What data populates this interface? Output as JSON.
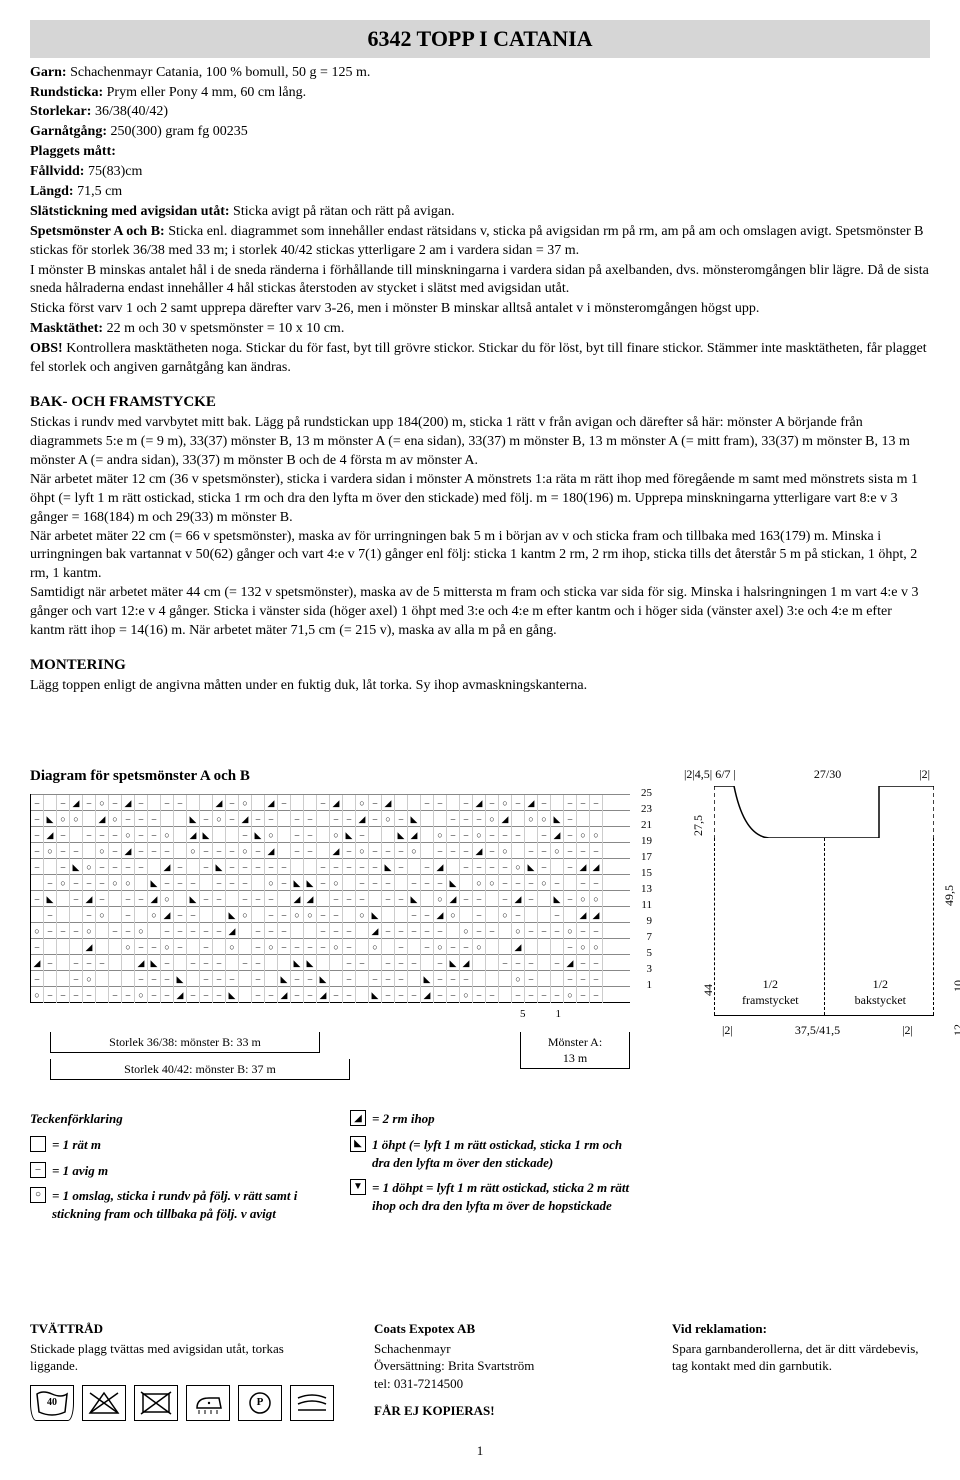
{
  "title": "6342  TOPP I CATANIA",
  "intro": {
    "garn_label": "Garn:",
    "garn_val": "Schachenmayr Catania, 100 % bomull, 50 g = 125 m.",
    "rund_label": "Rundsticka:",
    "rund_val": "Prym eller Pony 4 mm, 60 cm lång.",
    "stor_label": "Storlekar:",
    "stor_val": "36/38(40/42)",
    "garna_label": "Garnåtgång:",
    "garna_val": "250(300) gram fg 00235",
    "plagg_label": "Plaggets mått:",
    "fall_label": "Fållvidd:",
    "fall_val": "75(83)cm",
    "langd_label": "Längd:",
    "langd_val": "71,5 cm",
    "slat_label": "Slätstickning med avigsidan utåt:",
    "slat_val": "Sticka avigt på rätan och rätt på avigan.",
    "spets_label": "Spetsmönster A och B:",
    "spets_val1": "Sticka enl. diagrammet som innehåller endast rätsidans v, sticka på avigsidan rm på rm, am på am och omslagen avigt. Spetsmönster B stickas för storlek 36/38 med 33 m; i storlek 40/42 stickas ytterligare 2 am i vardera sidan = 37 m.",
    "spets_val2": "I mönster B minskas antalet hål i de sneda ränderna i förhållande till minskningarna i vardera sidan på axelbanden, dvs. mönsteromgången blir lägre. Då de sista sneda hålraderna endast innehåller 4 hål stickas återstoden av stycket i slätst med avigsidan utåt.",
    "spets_val3": "Sticka först varv 1 och 2 samt upprepa därefter varv 3-26, men i mönster B minskar alltså antalet v i mönsteromgången högst upp.",
    "mask_label": "Masktäthet:",
    "mask_val": "22 m och 30 v spetsmönster = 10 x 10 cm.",
    "obs_label": "OBS!",
    "obs_val": "Kontrollera masktätheten noga. Stickar du för fast, byt till grövre stickor. Stickar du för löst, byt till finare stickor. Stämmer inte masktätheten, får plagget fel storlek och angiven garnåtgång kan ändras."
  },
  "sections": {
    "bak_h": "BAK- OCH FRAMSTYCKE",
    "bak_body": "Stickas i rundv med varvbytet mitt bak. Lägg på rundstickan upp 184(200) m, sticka 1 rätt v från avigan och därefter så här: mönster A börjande från diagrammets 5:e m (= 9 m), 33(37) mönster B, 13 m mönster A (= ena sidan), 33(37) m mönster B, 13 m mönster A (= mitt fram), 33(37) m mönster B, 13 m mönster A (= andra sidan), 33(37) m mönster B och de 4 första m av mönster A.\nNär arbetet mäter 12 cm (36 v spetsmönster), sticka i vardera sidan i mönster A mönstrets 1:a räta m rätt ihop med föregående m samt med mönstrets sista m 1 öhpt (= lyft 1 m rätt ostickad, sticka 1 rm och dra den lyfta m över den stickade) med följ. m = 180(196) m. Upprepa minskningarna ytterligare vart 8:e v 3 gånger = 168(184) m och 29(33) m mönster B.\nNär arbetet mäter 22 cm (= 66 v spetsmönster), maska av för urringningen bak 5 m i början av v och sticka fram och tillbaka med 163(179) m. Minska i urringningen bak vartannat v 50(62) gånger och vart 4:e v 7(1) gånger enl följ: sticka 1 kantm 2 rm, 2 rm ihop, sticka tills det återstår 5 m på stickan, 1 öhpt, 2 rm, 1 kantm.\nSamtidigt när arbetet mäter 44 cm (= 132 v spetsmönster), maska av de 5 mittersta m fram och sticka var sida för sig. Minska i halsringningen 1 m vart 4:e v 3 gånger och vart 12:e v 4 gånger. Sticka i vänster sida (höger axel) 1 öhpt med 3:e och 4:e m efter kantm och i höger sida (vänster axel) 3:e och 4:e m efter kantm rätt ihop = 14(16) m. När arbetet mäter 71,5 cm (= 215 v), maska av alla m på en gång.",
    "mont_h": "MONTERING",
    "mont_body": "Lägg toppen enligt de angivna måtten under en fuktig duk, låt torka. Sy ihop avmaskningskanterna."
  },
  "diagram": {
    "title": "Diagram för spetsmönster A och B",
    "row_numbers": [
      25,
      23,
      21,
      19,
      17,
      15,
      13,
      11,
      9,
      7,
      5,
      3,
      1
    ],
    "under_5": "5",
    "under_1": "1",
    "size_a": "Storlek 36/38: mönster B: 33 m",
    "size_b": "Storlek 40/42: mönster B: 37 m",
    "mon_a": "Mönster A:\n13 m"
  },
  "legend": {
    "h": "Teckenförklaring",
    "l1": "= 1 rät m",
    "l2": "= 1 avig m",
    "l3": "= 1 omslag, sticka i rundv på följ. v rätt samt i stickning fram och tillbaka på följ. v avigt",
    "r1": "= 2 rm ihop",
    "r2": "1 öhpt (= lyft 1 m rätt ostickad, sticka 1 rm och dra den lyfta m över den stickade)",
    "r3": "= 1 döhpt = lyft 1 m rätt ostickad, sticka 2 m rätt ihop och dra den lyfta m över de hopstickade"
  },
  "schematic": {
    "top1": "|2|4,5| 6/7 |",
    "top2": "27/30",
    "top3": "|2|",
    "m275": "27,5",
    "m44": "44",
    "m495": "49,5",
    "m10": "10",
    "m12": "12",
    "fram": "1/2\nframstycket",
    "bak": "1/2\nbakstycket",
    "b1": "|2|",
    "b2": "37,5/41,5",
    "b3": "|2|"
  },
  "footer": {
    "tvatt_h": "TVÄTTRÅD",
    "tvatt_b": "Stickade plagg tvättas med avigsidan utåt, torkas liggande.",
    "coats_h": "Coats Expotex AB",
    "coats_1": "Schachenmayr",
    "coats_2": "Översättning: Brita Svartström",
    "coats_3": "tel: 031-7214500",
    "copy": "FÅR EJ KOPIERAS!",
    "rek_h": "Vid reklamation:",
    "rek_b": "Spara garnbanderollerna, det är ditt värdebevis, tag kontakt med din garnbutik.",
    "wash_temp": "40",
    "p": "P"
  },
  "pagenum": "1"
}
